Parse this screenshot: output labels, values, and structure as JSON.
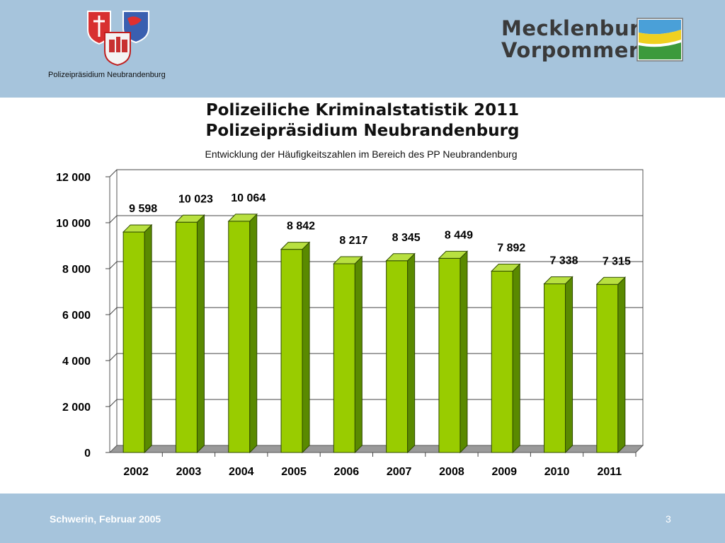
{
  "header": {
    "org_label": "Polizeipräsidium Neubrandenburg",
    "brand_logo": {
      "line1": "Mecklenburg",
      "line2": "Vorpommern"
    }
  },
  "slide": {
    "title_line1": "Polizeiliche Kriminalstatistik 2011",
    "title_line2": "Polizeipräsidium Neubrandenburg",
    "subtitle": "Entwicklung der Häufigkeitszahlen im Bereich des PP Neubrandenburg"
  },
  "footer": {
    "left_text": "Schwerin, Februar 2005",
    "page_number": "3"
  },
  "colors": {
    "header_band": "#a6c4dc",
    "bar_front": "#99cc00",
    "bar_side": "#5a8a00",
    "bar_top": "#b8e040"
  },
  "chart_data": {
    "type": "bar",
    "categories": [
      "2002",
      "2003",
      "2004",
      "2005",
      "2006",
      "2007",
      "2008",
      "2009",
      "2010",
      "2011"
    ],
    "values": [
      9598,
      10023,
      10064,
      8842,
      8217,
      8345,
      8449,
      7892,
      7338,
      7315
    ],
    "data_labels": [
      "9 598",
      "10 023",
      "10 064",
      "8 842",
      "8 217",
      "8 345",
      "8 449",
      "7 892",
      "7 338",
      "7 315"
    ],
    "yticks": [
      0,
      2000,
      4000,
      6000,
      8000,
      10000,
      12000
    ],
    "ytick_labels": [
      "0",
      "2 000",
      "4 000",
      "6 000",
      "8 000",
      "10 000",
      "12 000"
    ],
    "ylim": [
      0,
      12000
    ],
    "grid": true,
    "style": "3d-bar"
  }
}
